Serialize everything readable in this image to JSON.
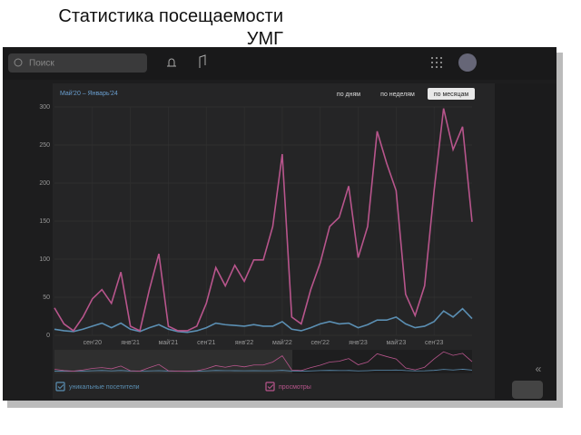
{
  "slide": {
    "title": "Статистика посещаемости УМГ"
  },
  "ui": {
    "search": "Поиск",
    "period_buttons": [
      "по дням",
      "по неделям",
      "по месяцам"
    ]
  },
  "chart_data": {
    "type": "line",
    "subtitle": "Май'20 – Январь'24",
    "categories": [
      null,
      null,
      null,
      null,
      "сен'20",
      null,
      null,
      null,
      "янв'21",
      null,
      null,
      null,
      "май'21",
      null,
      null,
      null,
      "сен'21",
      null,
      null,
      null,
      "янв'22",
      null,
      null,
      null,
      "май'22",
      null,
      null,
      null,
      "сен'22",
      null,
      null,
      null,
      "янв'23",
      null,
      null,
      null,
      "май'23",
      null,
      null,
      null,
      "сен'23",
      null,
      null,
      null,
      null
    ],
    "series": [
      {
        "name": "уникальные посетители",
        "color": "#5b8fb3",
        "values": [
          8,
          6,
          5,
          8,
          12,
          16,
          10,
          16,
          8,
          5,
          10,
          14,
          8,
          5,
          4,
          6,
          10,
          16,
          14,
          13,
          12,
          14,
          12,
          12,
          18,
          8,
          6,
          10,
          15,
          18,
          15,
          16,
          10,
          14,
          20,
          20,
          24,
          15,
          10,
          12,
          18,
          32,
          24,
          35,
          22
        ]
      },
      {
        "name": "просмотры",
        "color": "#b8558c",
        "values": [
          36,
          15,
          6,
          24,
          48,
          60,
          42,
          83,
          12,
          6,
          60,
          107,
          12,
          6,
          6,
          12,
          42,
          89,
          65,
          92,
          71,
          99,
          99,
          143,
          238,
          24,
          15,
          60,
          95,
          143,
          155,
          196,
          102,
          143,
          268,
          226,
          190,
          54,
          26,
          65,
          190,
          298,
          244,
          274,
          149
        ]
      }
    ],
    "ylim": [
      0,
      300
    ],
    "yticks": [
      0,
      50,
      100,
      150,
      200,
      250,
      300
    ],
    "grid": true
  }
}
